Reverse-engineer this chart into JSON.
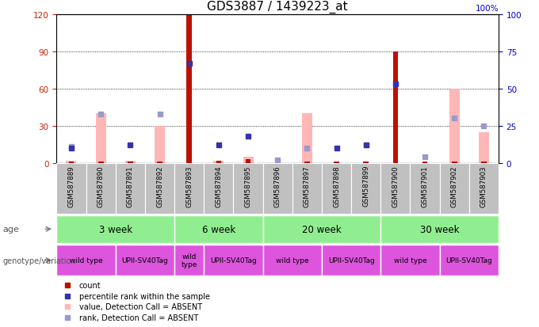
{
  "title": "GDS3887 / 1439223_at",
  "samples": [
    "GSM587889",
    "GSM587890",
    "GSM587891",
    "GSM587892",
    "GSM587893",
    "GSM587894",
    "GSM587895",
    "GSM587896",
    "GSM587897",
    "GSM587898",
    "GSM587899",
    "GSM587900",
    "GSM587901",
    "GSM587902",
    "GSM587903"
  ],
  "count_values": [
    1,
    1,
    1,
    1,
    120,
    2,
    3,
    1,
    1,
    1,
    1,
    90,
    1,
    1,
    1
  ],
  "percentile_rank": [
    10,
    null,
    12,
    null,
    67,
    12,
    18,
    null,
    null,
    10,
    12,
    53,
    null,
    null,
    null
  ],
  "value_absent": [
    2,
    40,
    2,
    30,
    null,
    2,
    5,
    null,
    40,
    null,
    null,
    null,
    null,
    60,
    25
  ],
  "rank_absent": [
    11,
    33,
    null,
    33,
    null,
    null,
    null,
    2,
    10,
    null,
    12,
    null,
    4,
    30,
    25
  ],
  "age_groups": [
    {
      "label": "3 week",
      "start": 0,
      "end": 4
    },
    {
      "label": "6 week",
      "start": 4,
      "end": 7
    },
    {
      "label": "20 week",
      "start": 7,
      "end": 11
    },
    {
      "label": "30 week",
      "start": 11,
      "end": 15
    }
  ],
  "genotype_groups": [
    {
      "label": "wild type",
      "start": 0,
      "end": 2
    },
    {
      "label": "UPII-SV40Tag",
      "start": 2,
      "end": 4
    },
    {
      "label": "wild\ntype",
      "start": 4,
      "end": 5
    },
    {
      "label": "UPII-SV40Tag",
      "start": 5,
      "end": 7
    },
    {
      "label": "wild type",
      "start": 7,
      "end": 9
    },
    {
      "label": "UPII-SV40Tag",
      "start": 9,
      "end": 11
    },
    {
      "label": "wild type",
      "start": 11,
      "end": 13
    },
    {
      "label": "UPII-SV40Tag",
      "start": 13,
      "end": 15
    }
  ],
  "ylim_left": [
    0,
    120
  ],
  "ylim_right": [
    0,
    100
  ],
  "yticks_left": [
    0,
    30,
    60,
    90,
    120
  ],
  "yticks_right": [
    0,
    25,
    50,
    75,
    100
  ],
  "bar_color_red": "#bb1100",
  "bar_color_pink": "#ffb6b6",
  "dot_color_blue": "#3333aa",
  "dot_color_lightblue": "#9999cc",
  "axis_left_color": "#cc2200",
  "axis_right_color": "#0000cc",
  "age_color": "#90ee90",
  "geno_color": "#dd55dd",
  "sample_box_color": "#c0c0c0"
}
